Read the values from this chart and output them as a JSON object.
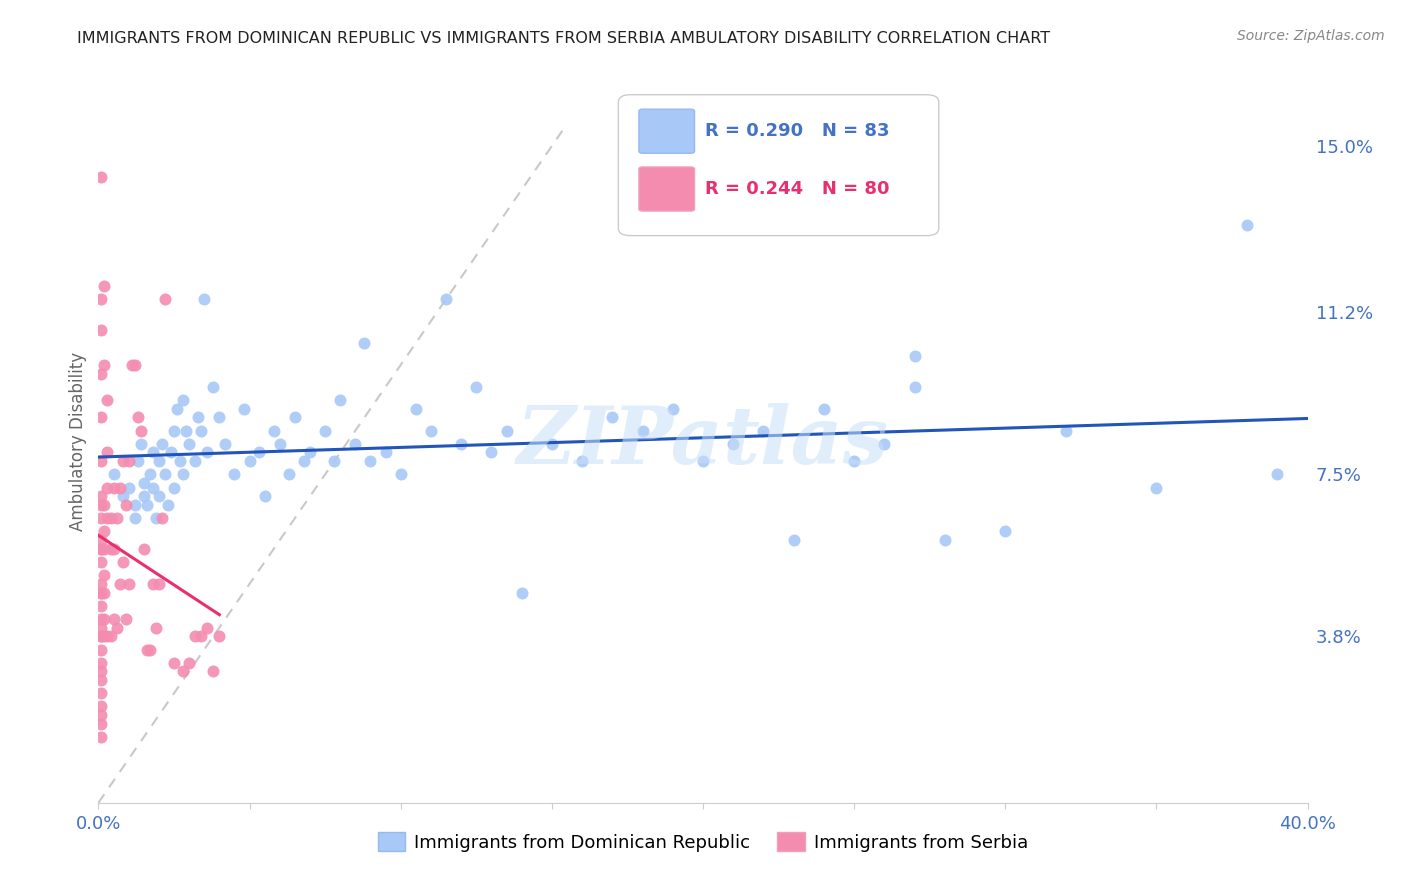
{
  "title": "IMMIGRANTS FROM DOMINICAN REPUBLIC VS IMMIGRANTS FROM SERBIA AMBULATORY DISABILITY CORRELATION CHART",
  "source": "Source: ZipAtlas.com",
  "ylabel": "Ambulatory Disability",
  "xlim": [
    0.0,
    0.4
  ],
  "ylim": [
    0.0,
    0.165
  ],
  "ytick_positions": [
    0.038,
    0.075,
    0.112,
    0.15
  ],
  "ytick_labels": [
    "3.8%",
    "7.5%",
    "11.2%",
    "15.0%"
  ],
  "color_blue": "#a8c8f8",
  "color_pink": "#f48cb0",
  "trendline_blue": "#2255bb",
  "trendline_pink": "#e83070",
  "trendline_dashed_color": "#bbbbbb",
  "legend_text_blue": "R = 0.290   N = 83",
  "legend_text_pink": "R = 0.244   N = 80",
  "legend_color_blue": "#4472c4",
  "legend_color_pink": "#e83070",
  "watermark": "ZIPatlas",
  "watermark_color": "#c8dff8",
  "bg_color": "#ffffff",
  "grid_color": "#dddddd",
  "tick_color": "#4472c4",
  "title_color": "#222222",
  "source_color": "#888888",
  "ylabel_color": "#666666",
  "blue_x": [
    0.005,
    0.008,
    0.01,
    0.012,
    0.012,
    0.013,
    0.014,
    0.015,
    0.015,
    0.016,
    0.017,
    0.018,
    0.018,
    0.019,
    0.02,
    0.02,
    0.021,
    0.022,
    0.023,
    0.024,
    0.025,
    0.025,
    0.026,
    0.027,
    0.028,
    0.028,
    0.029,
    0.03,
    0.032,
    0.033,
    0.034,
    0.035,
    0.036,
    0.038,
    0.04,
    0.042,
    0.045,
    0.048,
    0.05,
    0.053,
    0.055,
    0.058,
    0.06,
    0.063,
    0.065,
    0.068,
    0.07,
    0.075,
    0.078,
    0.08,
    0.085,
    0.088,
    0.09,
    0.095,
    0.1,
    0.105,
    0.11,
    0.115,
    0.12,
    0.125,
    0.13,
    0.135,
    0.14,
    0.15,
    0.16,
    0.17,
    0.18,
    0.19,
    0.2,
    0.21,
    0.22,
    0.23,
    0.24,
    0.25,
    0.26,
    0.27,
    0.28,
    0.3,
    0.32,
    0.35,
    0.27,
    0.38,
    0.39
  ],
  "blue_y": [
    0.075,
    0.07,
    0.072,
    0.068,
    0.065,
    0.078,
    0.082,
    0.07,
    0.073,
    0.068,
    0.075,
    0.072,
    0.08,
    0.065,
    0.07,
    0.078,
    0.082,
    0.075,
    0.068,
    0.08,
    0.085,
    0.072,
    0.09,
    0.078,
    0.075,
    0.092,
    0.085,
    0.082,
    0.078,
    0.088,
    0.085,
    0.115,
    0.08,
    0.095,
    0.088,
    0.082,
    0.075,
    0.09,
    0.078,
    0.08,
    0.07,
    0.085,
    0.082,
    0.075,
    0.088,
    0.078,
    0.08,
    0.085,
    0.078,
    0.092,
    0.082,
    0.105,
    0.078,
    0.08,
    0.075,
    0.09,
    0.085,
    0.115,
    0.082,
    0.095,
    0.08,
    0.085,
    0.048,
    0.082,
    0.078,
    0.088,
    0.085,
    0.09,
    0.078,
    0.082,
    0.085,
    0.06,
    0.09,
    0.078,
    0.082,
    0.095,
    0.06,
    0.062,
    0.085,
    0.072,
    0.102,
    0.132,
    0.075
  ],
  "pink_x": [
    0.001,
    0.001,
    0.001,
    0.001,
    0.001,
    0.001,
    0.001,
    0.001,
    0.001,
    0.001,
    0.001,
    0.001,
    0.001,
    0.001,
    0.001,
    0.001,
    0.001,
    0.001,
    0.001,
    0.001,
    0.002,
    0.002,
    0.002,
    0.002,
    0.002,
    0.002,
    0.002,
    0.003,
    0.003,
    0.003,
    0.003,
    0.004,
    0.004,
    0.004,
    0.005,
    0.005,
    0.005,
    0.006,
    0.006,
    0.007,
    0.007,
    0.008,
    0.008,
    0.009,
    0.009,
    0.01,
    0.01,
    0.011,
    0.012,
    0.013,
    0.014,
    0.015,
    0.016,
    0.017,
    0.018,
    0.019,
    0.02,
    0.021,
    0.022,
    0.025,
    0.028,
    0.03,
    0.032,
    0.034,
    0.036,
    0.038,
    0.04,
    0.002,
    0.002,
    0.003,
    0.001,
    0.001,
    0.001,
    0.001,
    0.001,
    0.001,
    0.001,
    0.001,
    0.001,
    0.001
  ],
  "pink_y": [
    0.07,
    0.065,
    0.06,
    0.058,
    0.055,
    0.05,
    0.048,
    0.045,
    0.042,
    0.04,
    0.038,
    0.035,
    0.032,
    0.03,
    0.028,
    0.025,
    0.022,
    0.02,
    0.018,
    0.015,
    0.068,
    0.062,
    0.058,
    0.052,
    0.048,
    0.042,
    0.038,
    0.08,
    0.072,
    0.065,
    0.038,
    0.065,
    0.058,
    0.038,
    0.072,
    0.058,
    0.042,
    0.065,
    0.04,
    0.072,
    0.05,
    0.078,
    0.055,
    0.068,
    0.042,
    0.078,
    0.05,
    0.1,
    0.1,
    0.088,
    0.085,
    0.058,
    0.035,
    0.035,
    0.05,
    0.04,
    0.05,
    0.065,
    0.115,
    0.032,
    0.03,
    0.032,
    0.038,
    0.038,
    0.04,
    0.03,
    0.038,
    0.118,
    0.1,
    0.092,
    0.143,
    0.115,
    0.108,
    0.098,
    0.088,
    0.078,
    0.068,
    0.058,
    0.048,
    0.038
  ]
}
